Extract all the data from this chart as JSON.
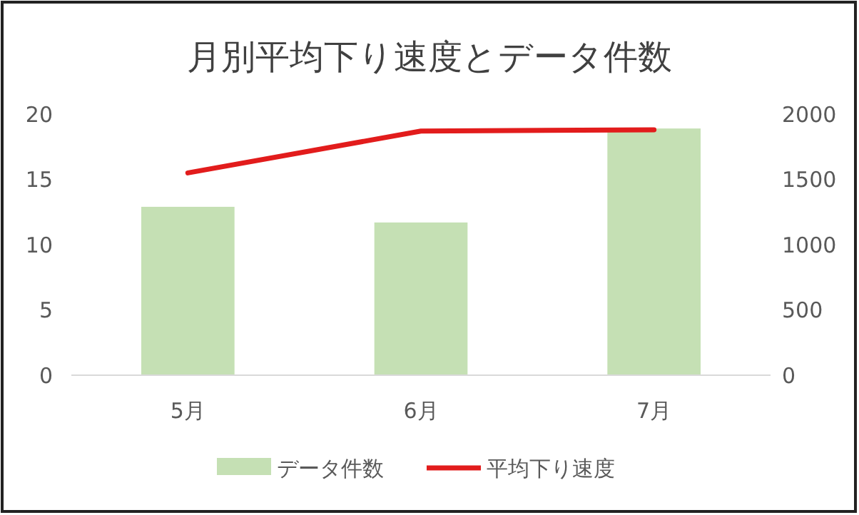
{
  "chart_data": {
    "type": "bar",
    "title": "月別平均下り速度とデータ件数",
    "categories": [
      "5月",
      "6月",
      "7月"
    ],
    "series": [
      {
        "name": "データ件数",
        "axis": "y2",
        "color": "#c5e0b4",
        "values": [
          1290,
          1170,
          1890
        ]
      },
      {
        "name": "平均下り速度",
        "type": "line",
        "color": "#e21c1c",
        "values": [
          15.5,
          18.7,
          18.8
        ]
      }
    ],
    "ylim": [
      0,
      20
    ],
    "yticks": [
      0,
      5,
      10,
      15,
      20
    ],
    "y2lim": [
      0,
      2000
    ],
    "y2ticks": [
      0,
      500,
      1000,
      1500,
      2000
    ],
    "legend": "bottom"
  }
}
